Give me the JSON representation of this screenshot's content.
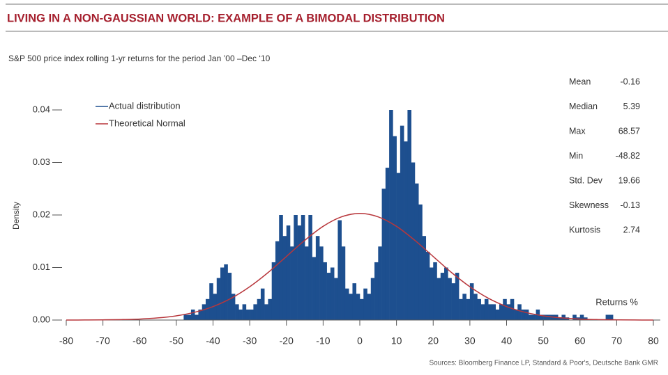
{
  "chart_data": {
    "type": "histogram",
    "title": "LIVING IN A NON-GAUSSIAN WORLD: EXAMPLE OF A BIMODAL DISTRIBUTION",
    "subtitle": "S&P 500 price index rolling 1-yr returns for the period Jan ’00 –Dec ‘10",
    "y_label": "Density",
    "x_label": "Returns %",
    "source": "Sources: Bloomberg Finance LP, Standard & Poor's, Deutsche Bank GMR",
    "xlim": [
      -80,
      80
    ],
    "ylim": [
      0,
      0.04
    ],
    "xticks": [
      -80,
      -70,
      -60,
      -50,
      -40,
      -30,
      -20,
      -10,
      0,
      10,
      20,
      30,
      40,
      50,
      60,
      70,
      80
    ],
    "yticks": [
      {
        "value": 0,
        "label": "0.00"
      },
      0.01,
      0.02,
      0.03,
      0.04
    ],
    "legend": "upper-left",
    "bins": [
      -48,
      -47,
      -46,
      -45,
      -44,
      -43,
      -42,
      -41,
      -40,
      -39,
      -38,
      -37,
      -36,
      -35,
      -34,
      -33,
      -32,
      -31,
      -30,
      -29,
      -28,
      -27,
      -26,
      -25,
      -24,
      -23,
      -22,
      -21,
      -20,
      -19,
      -18,
      -17,
      -16,
      -15,
      -14,
      -13,
      -12,
      -11,
      -10,
      -9,
      -8,
      -7,
      -6,
      -5,
      -4,
      -3,
      -2,
      -1,
      0,
      1,
      2,
      3,
      4,
      5,
      6,
      7,
      8,
      9,
      10,
      11,
      12,
      13,
      14,
      15,
      16,
      17,
      18,
      19,
      20,
      21,
      22,
      23,
      24,
      25,
      26,
      27,
      28,
      29,
      30,
      31,
      32,
      33,
      34,
      35,
      36,
      37,
      38,
      39,
      40,
      41,
      42,
      43,
      44,
      45,
      46,
      47,
      48,
      49,
      50,
      51,
      52,
      53,
      54,
      55,
      56,
      57,
      58,
      59,
      60,
      61,
      62,
      63,
      64,
      65,
      66,
      67,
      68,
      69
    ],
    "series": [
      {
        "name": "Actual distribution",
        "type": "histogram",
        "color": "#1d4f8f",
        "values": [
          0.001,
          0.001,
          0.002,
          0.001,
          0.002,
          0.003,
          0.004,
          0.007,
          0.005,
          0.008,
          0.01,
          0.0106,
          0.009,
          0.005,
          0.003,
          0.002,
          0.003,
          0.002,
          0.002,
          0.003,
          0.004,
          0.006,
          0.003,
          0.004,
          0.011,
          0.015,
          0.02,
          0.016,
          0.018,
          0.014,
          0.02,
          0.018,
          0.02,
          0.014,
          0.02,
          0.012,
          0.016,
          0.014,
          0.011,
          0.009,
          0.01,
          0.008,
          0.019,
          0.014,
          0.006,
          0.005,
          0.007,
          0.005,
          0.004,
          0.006,
          0.005,
          0.008,
          0.011,
          0.014,
          0.025,
          0.029,
          0.04,
          0.035,
          0.028,
          0.037,
          0.034,
          0.04,
          0.03,
          0.026,
          0.022,
          0.016,
          0.013,
          0.01,
          0.011,
          0.008,
          0.009,
          0.01,
          0.008,
          0.007,
          0.009,
          0.004,
          0.005,
          0.004,
          0.007,
          0.005,
          0.004,
          0.003,
          0.004,
          0.003,
          0.003,
          0.002,
          0.003,
          0.004,
          0.003,
          0.004,
          0.002,
          0.003,
          0.002,
          0.002,
          0.001,
          0.001,
          0.002,
          0.001,
          0.001,
          0.001,
          0.001,
          0.001,
          0.0005,
          0.001,
          0.0005,
          0,
          0.001,
          0.0005,
          0.001,
          0.0005,
          0,
          0,
          0,
          0,
          0,
          0.001,
          0.001
        ]
      },
      {
        "name": "Theoretical Normal",
        "type": "line",
        "color": "#b8373c",
        "x": [
          -80,
          -75,
          -70,
          -65,
          -60,
          -55,
          -50,
          -45,
          -40,
          -35,
          -30,
          -25,
          -20,
          -15,
          -10,
          -5,
          0,
          5,
          10,
          15,
          20,
          25,
          30,
          35,
          40,
          45,
          50,
          55,
          60,
          65,
          70,
          75,
          80
        ],
        "values": [
          0,
          1e-05,
          4e-05,
          9e-05,
          0.00019,
          0.00041,
          0.0008,
          0.00148,
          0.00256,
          0.00416,
          0.00634,
          0.00904,
          0.0121,
          0.01517,
          0.01784,
          0.01964,
          0.02029,
          0.01964,
          0.01784,
          0.01517,
          0.0121,
          0.00904,
          0.00634,
          0.00416,
          0.00256,
          0.00148,
          0.0008,
          0.00041,
          0.00019,
          9e-05,
          4e-05,
          1e-05,
          0
        ]
      }
    ],
    "stats": [
      {
        "label": "Mean",
        "value": -0.16
      },
      {
        "label": "Median",
        "value": 5.39
      },
      {
        "label": "Max",
        "value": 68.57
      },
      {
        "label": "Min",
        "value": -48.82
      },
      {
        "label": "Std. Dev",
        "value": 19.66
      },
      {
        "label": "Skewness",
        "value": -0.13
      },
      {
        "label": "Kurtosis",
        "value": 2.74
      }
    ]
  }
}
